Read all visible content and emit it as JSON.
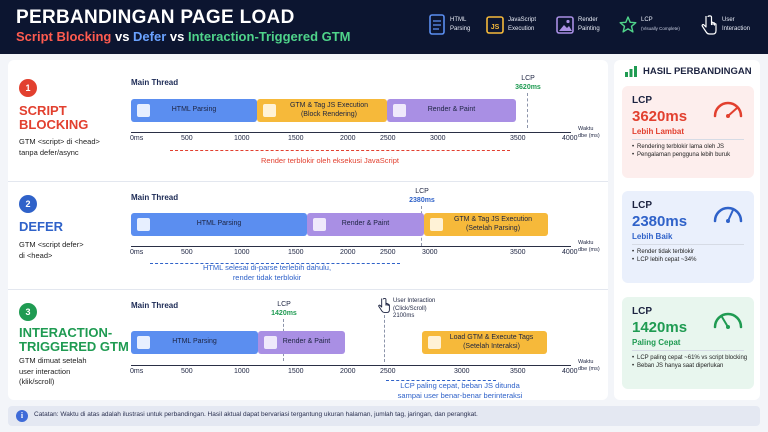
{
  "header": {
    "title": "PERBANDINGAN PAGE LOAD",
    "subtitle_a": "Script Blocking",
    "subtitle_vs1": " vs ",
    "subtitle_b": "Defer",
    "subtitle_vs2": " vs ",
    "subtitle_c": "Interaction-Triggered GTM",
    "legend": [
      {
        "icon": "document-icon",
        "label": "HTML",
        "label2": "Parsing",
        "note": ""
      },
      {
        "icon": "js-icon",
        "label": "JavaScript",
        "label2": "Execution",
        "note": ""
      },
      {
        "icon": "image-icon",
        "label": "Render",
        "label2": "Painting",
        "note": ""
      },
      {
        "icon": "star-icon",
        "label": "LCP",
        "label2": "",
        "note": "(Visually Complete)"
      },
      {
        "icon": "pointer-icon",
        "label": "User",
        "label2": "Interaction",
        "note": ""
      }
    ]
  },
  "axis": {
    "ticks": [
      "0ms",
      "500",
      "1000",
      "1500",
      "2000",
      "2500",
      "3000",
      "3500",
      "4000"
    ],
    "caption_1": "Waktu",
    "caption_2": "dbe (ms)"
  },
  "main_thread_label": "Main Thread",
  "sections": [
    {
      "number": "1",
      "title_l1": "SCRIPT",
      "title_l2": "BLOCKING",
      "desc_l1": "GTM <script> di <head>",
      "desc_l2": "tanpa defer/async",
      "desc_l3": "",
      "lcp_label": "LCP",
      "lcp_value": "3620ms",
      "seg_html": "HTML Parsing",
      "seg_js_l1": "GTM & Tag JS Execution",
      "seg_js_l2": "(Block Rendering)",
      "seg_render": "Render & Paint",
      "note": "Render terblokir oleh eksekusi JavaScript"
    },
    {
      "number": "2",
      "title_l1": "DEFER",
      "title_l2": "",
      "desc_l1": "GTM <script defer>",
      "desc_l2": "di <head>",
      "desc_l3": "",
      "lcp_label": "LCP",
      "lcp_value": "2380ms",
      "seg_html": "HTML Parsing",
      "seg_render": "Render & Paint",
      "seg_js_l1": "GTM & Tag JS Execution",
      "seg_js_l2": "(Setelah Parsing)",
      "note_l1": "HTML selesai di-parse terlebih dahulu,",
      "note_l2": "render tidak terblokir"
    },
    {
      "number": "3",
      "title_l1": "INTERACTION-",
      "title_l2": "TRIGGERED GTM",
      "desc_l1": "GTM dimuat setelah",
      "desc_l2": "user interaction",
      "desc_l3": "(klik/scroll)",
      "lcp_label": "LCP",
      "lcp_value": "1420ms",
      "seg_html": "HTML Parsing",
      "seg_render": "Render & Paint",
      "seg_js_l1": "Load GTM & Execute Tags",
      "seg_js_l2": "(Setelah Interaksi)",
      "ui_l1": "User Interaction",
      "ui_l2": "(Click/Scroll)",
      "ui_l3": "2100ms",
      "note_l1": "LCP paling cepat, beban JS ditunda",
      "note_l2": "sampai user benar-benar berinteraksi"
    }
  ],
  "results": {
    "title": "HASIL PERBANDINGAN",
    "cards": [
      {
        "label": "LCP",
        "value": "3620ms",
        "sub": "Lebih Lambat",
        "color": "#e2402f",
        "bg": "#fdeeed",
        "bullets": [
          "Rendering terblokir lama oleh JS",
          "Pengalaman pengguna lebih buruk"
        ]
      },
      {
        "label": "LCP",
        "value": "2380ms",
        "sub": "Lebih Baik",
        "color": "#2f62c9",
        "bg": "#eaf0fc",
        "bullets": [
          "Render tidak terblokir",
          "LCP lebih cepat ~34%"
        ]
      },
      {
        "label": "LCP",
        "value": "1420ms",
        "sub": "Paling Cepat",
        "color": "#1f9b52",
        "bg": "#e8f6ee",
        "bullets": [
          "LCP paling cepat ~61% vs script blocking",
          "Beban JS hanya saat diperlukan"
        ]
      }
    ]
  },
  "footer": {
    "text": "Catatan: Waktu di atas adalah ilustrasi untuk perbandingan. Hasil aktual dapat bervariasi tergantung ukuran halaman, jumlah tag, jaringan, dan perangkat."
  },
  "colors": {
    "html": "#5b8ef0",
    "js": "#f6b93a",
    "render": "#a98fe4",
    "red": "#e2402f",
    "blue": "#2f62c9",
    "green": "#1f9b52"
  }
}
